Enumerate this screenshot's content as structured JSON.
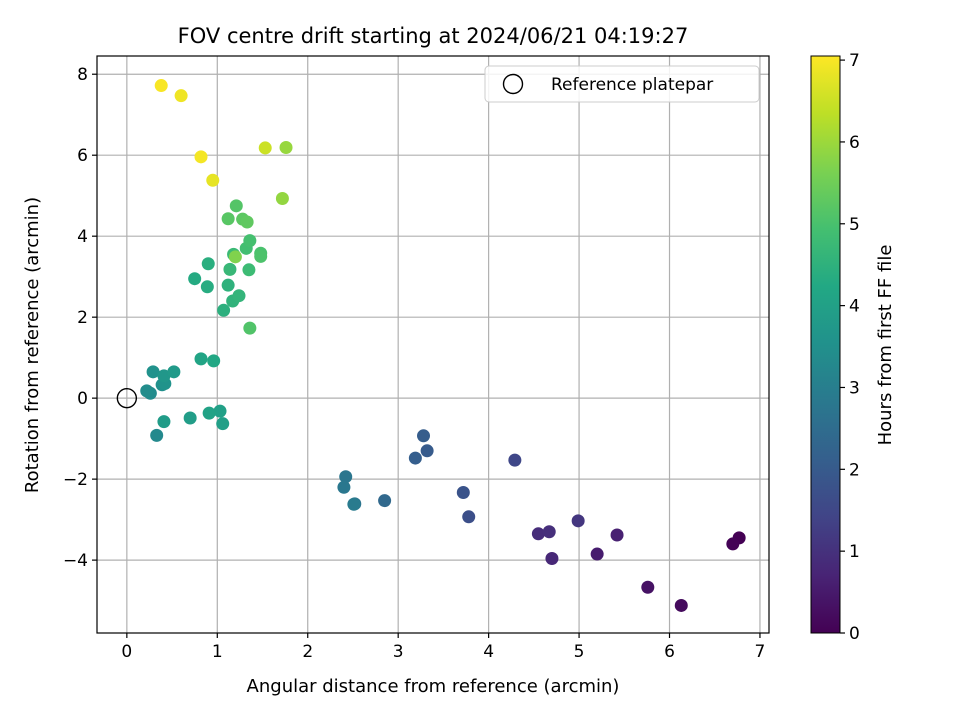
{
  "chart_data": {
    "type": "scatter",
    "title": "FOV centre drift starting at 2024/06/21 04:19:27",
    "xlabel": "Angular distance from reference (arcmin)",
    "ylabel": "Rotation from reference (arcmin)",
    "xlim": [
      -0.33,
      7.1
    ],
    "ylim": [
      -5.8,
      8.45
    ],
    "xticks": [
      0,
      1,
      2,
      3,
      4,
      5,
      6,
      7
    ],
    "yticks": [
      -4,
      -2,
      0,
      2,
      4,
      6,
      8
    ],
    "grid": true,
    "colorbar": {
      "label": "Hours from first FF file",
      "range": [
        0,
        7.05
      ],
      "ticks": [
        0,
        1,
        2,
        3,
        4,
        5,
        6,
        7
      ],
      "colormap": "viridis"
    },
    "legend": {
      "position": "top-right",
      "entries": [
        {
          "label": "Reference platepar",
          "marker": "open-circle"
        }
      ]
    },
    "reference_point": {
      "x": 0,
      "y": 0
    },
    "points": [
      {
        "x": 6.77,
        "y": -3.45,
        "h": 0.0
      },
      {
        "x": 6.7,
        "y": -3.6,
        "h": 0.05
      },
      {
        "x": 6.13,
        "y": -5.12,
        "h": 0.2
      },
      {
        "x": 5.76,
        "y": -4.67,
        "h": 0.35
      },
      {
        "x": 5.2,
        "y": -3.85,
        "h": 0.55
      },
      {
        "x": 5.42,
        "y": -3.38,
        "h": 0.65
      },
      {
        "x": 4.7,
        "y": -3.96,
        "h": 0.8
      },
      {
        "x": 4.55,
        "y": -3.35,
        "h": 0.9
      },
      {
        "x": 4.67,
        "y": -3.3,
        "h": 0.95
      },
      {
        "x": 4.99,
        "y": -3.03,
        "h": 1.1
      },
      {
        "x": 4.29,
        "y": -1.53,
        "h": 1.5
      },
      {
        "x": 3.78,
        "y": -2.93,
        "h": 1.7
      },
      {
        "x": 3.72,
        "y": -2.33,
        "h": 1.8
      },
      {
        "x": 3.32,
        "y": -1.3,
        "h": 2.0
      },
      {
        "x": 3.28,
        "y": -0.93,
        "h": 2.05
      },
      {
        "x": 3.19,
        "y": -1.48,
        "h": 2.1
      },
      {
        "x": 2.85,
        "y": -2.53,
        "h": 2.4
      },
      {
        "x": 2.52,
        "y": -2.61,
        "h": 2.7
      },
      {
        "x": 2.51,
        "y": -2.62,
        "h": 2.9
      },
      {
        "x": 2.42,
        "y": -1.94,
        "h": 2.75
      },
      {
        "x": 2.4,
        "y": -2.2,
        "h": 2.8
      },
      {
        "x": 0.33,
        "y": -0.92,
        "h": 3.3
      },
      {
        "x": 0.26,
        "y": 0.12,
        "h": 3.35
      },
      {
        "x": 0.22,
        "y": 0.18,
        "h": 3.4
      },
      {
        "x": 0.39,
        "y": 0.33,
        "h": 3.5
      },
      {
        "x": 0.29,
        "y": 0.65,
        "h": 3.55
      },
      {
        "x": 0.42,
        "y": 0.36,
        "h": 3.6
      },
      {
        "x": 0.41,
        "y": 0.55,
        "h": 3.7
      },
      {
        "x": 0.52,
        "y": 0.65,
        "h": 3.8
      },
      {
        "x": 0.41,
        "y": -0.58,
        "h": 3.85
      },
      {
        "x": 0.7,
        "y": -0.49,
        "h": 3.9
      },
      {
        "x": 1.06,
        "y": -0.63,
        "h": 3.95
      },
      {
        "x": 1.03,
        "y": -0.32,
        "h": 4.0
      },
      {
        "x": 0.91,
        "y": -0.37,
        "h": 4.05
      },
      {
        "x": 0.82,
        "y": 0.97,
        "h": 4.1
      },
      {
        "x": 0.96,
        "y": 0.92,
        "h": 4.2
      },
      {
        "x": 0.75,
        "y": 2.95,
        "h": 4.3
      },
      {
        "x": 0.89,
        "y": 2.75,
        "h": 4.35
      },
      {
        "x": 0.9,
        "y": 3.32,
        "h": 4.4
      },
      {
        "x": 1.07,
        "y": 2.17,
        "h": 4.45
      },
      {
        "x": 1.12,
        "y": 2.79,
        "h": 4.5
      },
      {
        "x": 1.17,
        "y": 2.4,
        "h": 4.55
      },
      {
        "x": 1.24,
        "y": 2.53,
        "h": 4.6
      },
      {
        "x": 1.14,
        "y": 3.18,
        "h": 4.7
      },
      {
        "x": 1.18,
        "y": 3.55,
        "h": 4.75
      },
      {
        "x": 1.35,
        "y": 3.17,
        "h": 4.8
      },
      {
        "x": 1.32,
        "y": 3.7,
        "h": 4.9
      },
      {
        "x": 1.36,
        "y": 3.89,
        "h": 4.95
      },
      {
        "x": 1.48,
        "y": 3.58,
        "h": 5.0
      },
      {
        "x": 1.48,
        "y": 3.5,
        "h": 5.05
      },
      {
        "x": 1.36,
        "y": 1.73,
        "h": 5.1
      },
      {
        "x": 1.21,
        "y": 4.75,
        "h": 5.15
      },
      {
        "x": 1.12,
        "y": 4.43,
        "h": 5.2
      },
      {
        "x": 1.28,
        "y": 4.42,
        "h": 5.25
      },
      {
        "x": 1.33,
        "y": 4.35,
        "h": 5.3
      },
      {
        "x": 1.2,
        "y": 3.49,
        "h": 5.7
      },
      {
        "x": 1.72,
        "y": 4.93,
        "h": 5.9
      },
      {
        "x": 1.76,
        "y": 6.19,
        "h": 5.95
      },
      {
        "x": 1.53,
        "y": 6.18,
        "h": 6.5
      },
      {
        "x": 0.95,
        "y": 5.38,
        "h": 6.8
      },
      {
        "x": 0.82,
        "y": 5.96,
        "h": 6.95
      },
      {
        "x": 0.6,
        "y": 7.47,
        "h": 6.9
      },
      {
        "x": 0.38,
        "y": 7.72,
        "h": 7.0
      }
    ]
  }
}
